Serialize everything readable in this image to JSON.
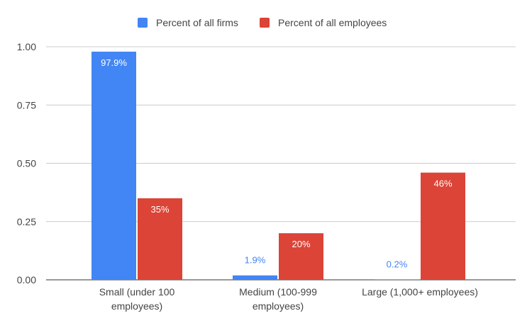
{
  "chart_data": {
    "type": "bar",
    "categories": [
      [
        "Small (under 100",
        "employees)"
      ],
      [
        "Medium (100-999",
        "employees)"
      ],
      [
        "Large (1,000+ employees)"
      ]
    ],
    "series": [
      {
        "name": "Percent of all firms",
        "color": "#4285f4",
        "values": [
          0.979,
          0.019,
          0.002
        ],
        "labels": [
          "97.9%",
          "1.9%",
          "0.2%"
        ]
      },
      {
        "name": "Percent of all employees",
        "color": "#db4437",
        "values": [
          0.35,
          0.2,
          0.46
        ],
        "labels": [
          "35%",
          "20%",
          "46%"
        ]
      }
    ],
    "y_ticks": [
      "0.00",
      "0.25",
      "0.50",
      "0.75",
      "1.00"
    ],
    "ylim": [
      0,
      1.0
    ],
    "grid": true,
    "legend_position": "top-center"
  }
}
